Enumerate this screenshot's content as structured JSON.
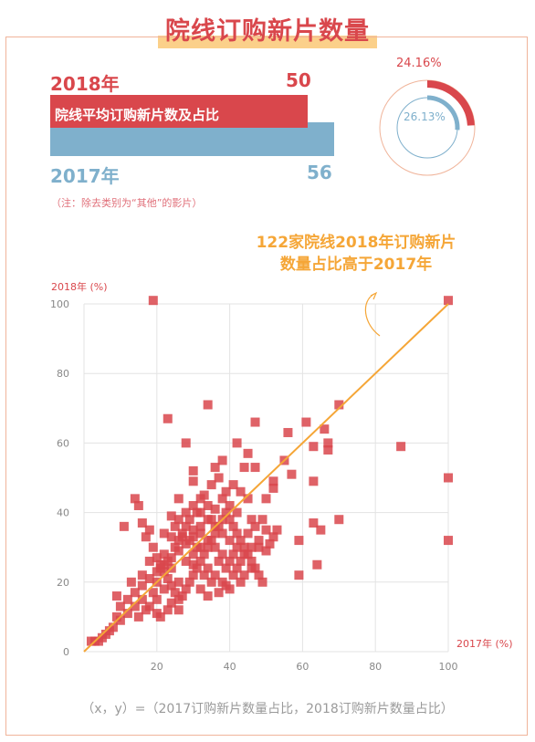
{
  "title": "院线订购新片数量",
  "summary": {
    "y2018": {
      "label": "2018年",
      "value": "50",
      "color": "#d9474c"
    },
    "y2017": {
      "label": "2017年",
      "value": "56",
      "color": "#7fb0cc"
    },
    "bar_label": "院线平均订购新片数及占比",
    "pct_2018": "24.16%",
    "pct_2017": "26.13%",
    "pct_2018_value": 24.16,
    "pct_2017_value": 26.13
  },
  "note": "（注：除去类别为“其他”的影片）",
  "annotation_line1": "122家院线2018年订购新片",
  "annotation_line2": "数量占比高于2017年",
  "caption": "（x，y）=（2017订购新片数量占比，2018订购新片数量占比）",
  "chart_data": {
    "type": "scatter",
    "xlabel": "2017年 (%)",
    "ylabel": "2018年 (%)",
    "xlim": [
      0,
      100
    ],
    "ylim": [
      0,
      100
    ],
    "xticks": [
      20,
      40,
      60,
      80,
      100
    ],
    "yticks": [
      0,
      20,
      40,
      60,
      80,
      100
    ],
    "grid": true,
    "point_color": "#d9474c",
    "line_color": "#f5a637",
    "reference_line": {
      "from": [
        0,
        0
      ],
      "to": [
        100,
        100
      ]
    },
    "points": [
      [
        19,
        101
      ],
      [
        100,
        101
      ],
      [
        87,
        59
      ],
      [
        100,
        50
      ],
      [
        100,
        32
      ],
      [
        34,
        71
      ],
      [
        23,
        67
      ],
      [
        47,
        66
      ],
      [
        70,
        71
      ],
      [
        61,
        66
      ],
      [
        66,
        64
      ],
      [
        67,
        60
      ],
      [
        67,
        58
      ],
      [
        70,
        38
      ],
      [
        59,
        32
      ],
      [
        59,
        22
      ],
      [
        64,
        25
      ],
      [
        65,
        35
      ],
      [
        63,
        37
      ],
      [
        56,
        63
      ],
      [
        63,
        59
      ],
      [
        55,
        55
      ],
      [
        57,
        51
      ],
      [
        63,
        49
      ],
      [
        52,
        49
      ],
      [
        52,
        47
      ],
      [
        50,
        44
      ],
      [
        42,
        60
      ],
      [
        45,
        57
      ],
      [
        47,
        53
      ],
      [
        44,
        53
      ],
      [
        38,
        55
      ],
      [
        36,
        53
      ],
      [
        28,
        60
      ],
      [
        30,
        52
      ],
      [
        30,
        49
      ],
      [
        32,
        44
      ],
      [
        26,
        44
      ],
      [
        24,
        39
      ],
      [
        26,
        38
      ],
      [
        28,
        36
      ],
      [
        30,
        35
      ],
      [
        32,
        34
      ],
      [
        34,
        32
      ],
      [
        36,
        30
      ],
      [
        38,
        28
      ],
      [
        40,
        26
      ],
      [
        42,
        24
      ],
      [
        44,
        22
      ],
      [
        46,
        24
      ],
      [
        48,
        30
      ],
      [
        50,
        35
      ],
      [
        46,
        38
      ],
      [
        42,
        40
      ],
      [
        40,
        42
      ],
      [
        38,
        44
      ],
      [
        36,
        41
      ],
      [
        34,
        38
      ],
      [
        32,
        36
      ],
      [
        30,
        33
      ],
      [
        28,
        31
      ],
      [
        26,
        29
      ],
      [
        24,
        27
      ],
      [
        22,
        25
      ],
      [
        20,
        23
      ],
      [
        18,
        21
      ],
      [
        16,
        19
      ],
      [
        14,
        17
      ],
      [
        12,
        15
      ],
      [
        10,
        13
      ],
      [
        9,
        10
      ],
      [
        8,
        7
      ],
      [
        7,
        6
      ],
      [
        6,
        5
      ],
      [
        5,
        4
      ],
      [
        4,
        3
      ],
      [
        3,
        3
      ],
      [
        2,
        3
      ],
      [
        11,
        36
      ],
      [
        9,
        16
      ],
      [
        13,
        20
      ],
      [
        14,
        44
      ],
      [
        15,
        42
      ],
      [
        16,
        37
      ],
      [
        17,
        33
      ],
      [
        18,
        35
      ],
      [
        19,
        30
      ],
      [
        20,
        27
      ],
      [
        21,
        25
      ],
      [
        22,
        23
      ],
      [
        23,
        21
      ],
      [
        24,
        19
      ],
      [
        25,
        17
      ],
      [
        26,
        15
      ],
      [
        27,
        16
      ],
      [
        28,
        18
      ],
      [
        29,
        20
      ],
      [
        30,
        22
      ],
      [
        31,
        24
      ],
      [
        32,
        26
      ],
      [
        33,
        28
      ],
      [
        34,
        30
      ],
      [
        35,
        32
      ],
      [
        36,
        34
      ],
      [
        37,
        36
      ],
      [
        38,
        38
      ],
      [
        39,
        40
      ],
      [
        40,
        38
      ],
      [
        41,
        36
      ],
      [
        42,
        34
      ],
      [
        43,
        32
      ],
      [
        44,
        30
      ],
      [
        45,
        28
      ],
      [
        46,
        26
      ],
      [
        47,
        24
      ],
      [
        48,
        22
      ],
      [
        49,
        20
      ],
      [
        50,
        29
      ],
      [
        51,
        31
      ],
      [
        52,
        33
      ],
      [
        53,
        35
      ],
      [
        22,
        34
      ],
      [
        24,
        33
      ],
      [
        26,
        32
      ],
      [
        28,
        40
      ],
      [
        30,
        42
      ],
      [
        32,
        40
      ],
      [
        34,
        42
      ],
      [
        36,
        36
      ],
      [
        38,
        34
      ],
      [
        40,
        32
      ],
      [
        42,
        30
      ],
      [
        44,
        28
      ],
      [
        46,
        30
      ],
      [
        48,
        32
      ],
      [
        22,
        18
      ],
      [
        24,
        14
      ],
      [
        26,
        12
      ],
      [
        20,
        11
      ],
      [
        18,
        13
      ],
      [
        16,
        15
      ],
      [
        14,
        13
      ],
      [
        12,
        11
      ],
      [
        10,
        9
      ],
      [
        28,
        26
      ],
      [
        30,
        28
      ],
      [
        32,
        30
      ],
      [
        34,
        24
      ],
      [
        36,
        22
      ],
      [
        38,
        20
      ],
      [
        40,
        18
      ],
      [
        25,
        30
      ],
      [
        27,
        33
      ],
      [
        29,
        38
      ],
      [
        31,
        40
      ],
      [
        33,
        45
      ],
      [
        35,
        48
      ],
      [
        37,
        50
      ],
      [
        39,
        46
      ],
      [
        41,
        48
      ],
      [
        43,
        46
      ],
      [
        45,
        44
      ],
      [
        20,
        15
      ],
      [
        22,
        28
      ],
      [
        18,
        26
      ],
      [
        16,
        22
      ],
      [
        24,
        24
      ],
      [
        26,
        20
      ],
      [
        37,
        17
      ],
      [
        39,
        19
      ],
      [
        20,
        20
      ],
      [
        21,
        24
      ],
      [
        23,
        26
      ],
      [
        25,
        36
      ],
      [
        27,
        34
      ],
      [
        29,
        32
      ],
      [
        31,
        30
      ],
      [
        33,
        22
      ],
      [
        35,
        20
      ],
      [
        41,
        22
      ],
      [
        43,
        26
      ],
      [
        45,
        34
      ],
      [
        47,
        36
      ],
      [
        49,
        38
      ],
      [
        35,
        38
      ],
      [
        37,
        26
      ],
      [
        39,
        24
      ],
      [
        41,
        28
      ],
      [
        43,
        20
      ],
      [
        30,
        25
      ],
      [
        32,
        18
      ],
      [
        34,
        16
      ],
      [
        19,
        17
      ],
      [
        17,
        12
      ],
      [
        15,
        10
      ],
      [
        21,
        10
      ],
      [
        23,
        12
      ]
    ]
  },
  "colors": {
    "accent": "#d9474c",
    "blue": "#7fb0cc",
    "orange": "#f5a637",
    "frame": "#f0b49a"
  }
}
